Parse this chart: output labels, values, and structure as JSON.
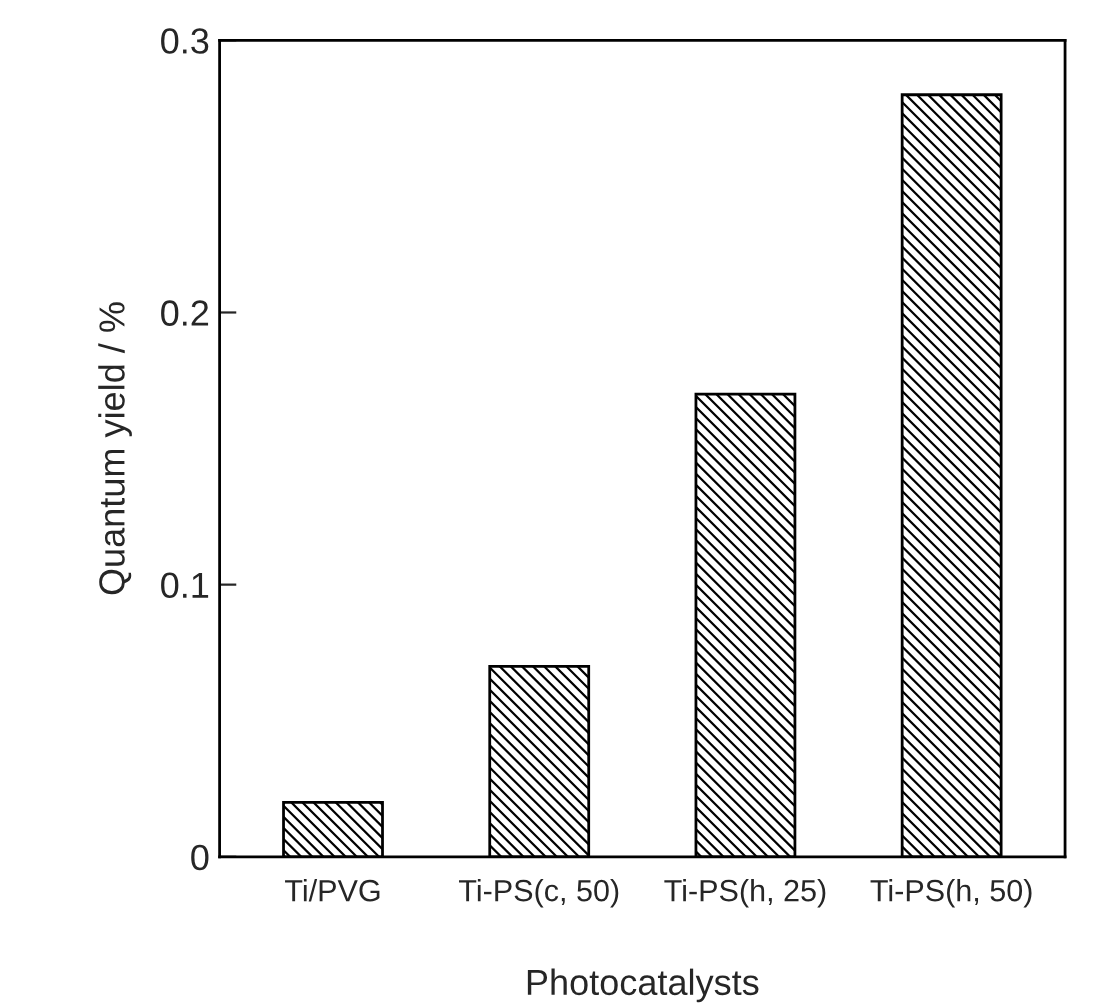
{
  "chart_data": {
    "type": "bar",
    "xlabel": "Photocatalysts",
    "ylabel": "Quantum yield / %",
    "categories": [
      "Ti/PVG",
      "Ti-PS(c, 50)",
      "Ti-PS(h, 25)",
      "Ti-PS(h, 50)"
    ],
    "values": [
      0.02,
      0.07,
      0.17,
      0.28
    ],
    "color": "#000000",
    "ylim": [
      0,
      0.3
    ],
    "yticks": [
      0,
      0.1,
      0.2,
      0.3
    ],
    "grid": false,
    "legend": false
  }
}
